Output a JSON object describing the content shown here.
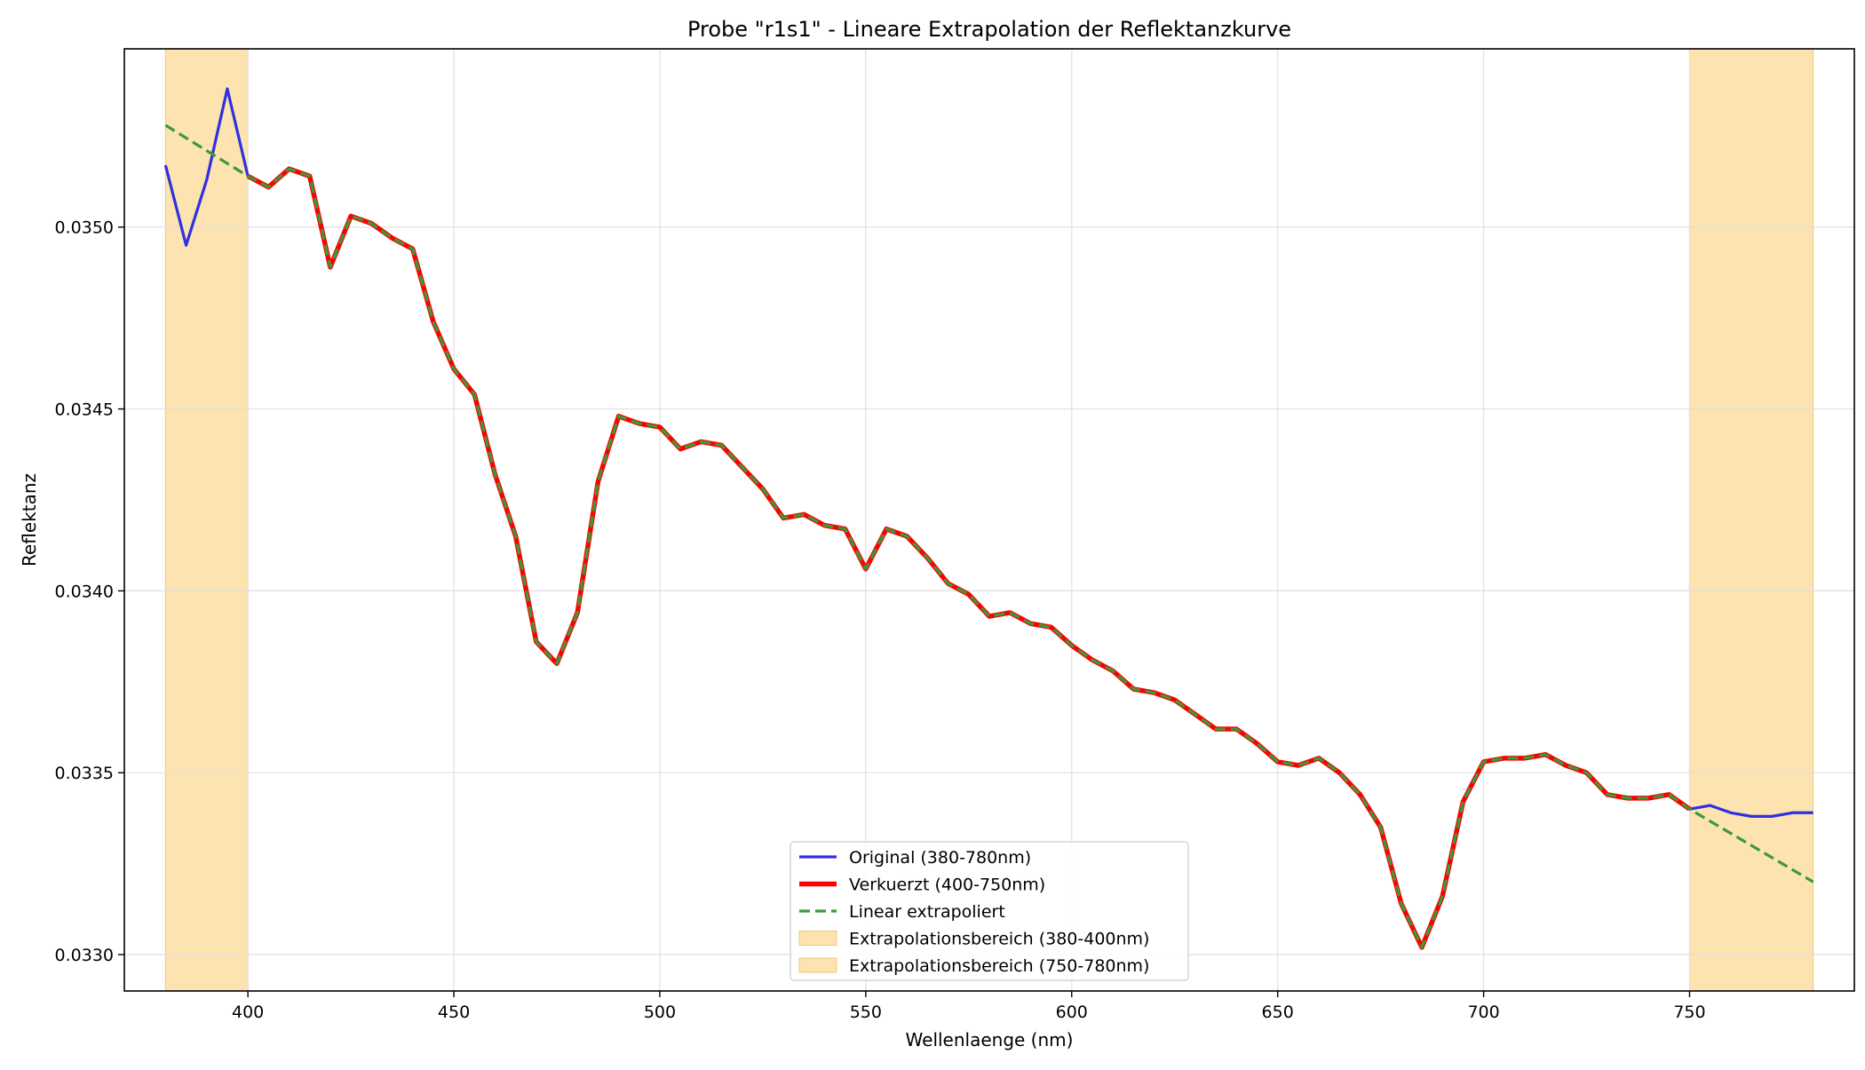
{
  "chart_data": {
    "type": "line",
    "title": "Probe \"r1s1\" - Lineare Extrapolation der Reflektanzkurve",
    "xlabel": "Wellenlaenge (nm)",
    "ylabel": "Reflektanz",
    "xlim": [
      370,
      790
    ],
    "ylim": [
      0.0329,
      0.03549
    ],
    "xticks": [
      400,
      450,
      500,
      550,
      600,
      650,
      700,
      750
    ],
    "xtick_labels": [
      "400",
      "450",
      "500",
      "550",
      "600",
      "650",
      "700",
      "750"
    ],
    "yticks": [
      0.033,
      0.0335,
      0.034,
      0.0345,
      0.035
    ],
    "ytick_labels": [
      "0.0330",
      "0.0335",
      "0.0340",
      "0.0345",
      "0.0350"
    ],
    "grid": true,
    "legend_position": "lower-center",
    "x": [
      380,
      385,
      390,
      395,
      400,
      405,
      410,
      415,
      420,
      425,
      430,
      435,
      440,
      445,
      450,
      455,
      460,
      465,
      470,
      475,
      480,
      485,
      490,
      495,
      500,
      505,
      510,
      515,
      520,
      525,
      530,
      535,
      540,
      545,
      550,
      555,
      560,
      565,
      570,
      575,
      580,
      585,
      590,
      595,
      600,
      605,
      610,
      615,
      620,
      625,
      630,
      635,
      640,
      645,
      650,
      655,
      660,
      665,
      670,
      675,
      680,
      685,
      690,
      695,
      700,
      705,
      710,
      715,
      720,
      725,
      730,
      735,
      740,
      745,
      750,
      755,
      760,
      765,
      770,
      775,
      780
    ],
    "shaded_regions": [
      {
        "name": "Extrapolationsbereich (380-400nm)",
        "x_range": [
          380,
          400
        ],
        "color": "#fde3b0"
      },
      {
        "name": "Extrapolationsbereich (750-780nm)",
        "x_range": [
          750,
          780
        ],
        "color": "#fde3b0"
      }
    ],
    "series": [
      {
        "name": "Original (380-780nm)",
        "color": "#3030e0",
        "style": "solid",
        "x_range": [
          380,
          780
        ],
        "values": [
          0.03517,
          0.03495,
          0.03513,
          0.03538,
          0.03514,
          0.03511,
          0.03516,
          0.03514,
          0.03489,
          0.03503,
          0.03501,
          0.03497,
          0.03494,
          0.03474,
          0.03461,
          0.03454,
          0.03432,
          0.03415,
          0.03386,
          0.0338,
          0.03394,
          0.0343,
          0.03448,
          0.03446,
          0.03445,
          0.03439,
          0.03441,
          0.0344,
          0.03434,
          0.03428,
          0.0342,
          0.03421,
          0.03418,
          0.03417,
          0.03406,
          0.03417,
          0.03415,
          0.03409,
          0.03402,
          0.03399,
          0.03393,
          0.03394,
          0.03391,
          0.0339,
          0.03385,
          0.03381,
          0.03378,
          0.03373,
          0.03372,
          0.0337,
          0.03366,
          0.03362,
          0.03362,
          0.03358,
          0.03353,
          0.03352,
          0.03354,
          0.0335,
          0.03344,
          0.03335,
          0.03314,
          0.03302,
          0.03316,
          0.03342,
          0.03353,
          0.03354,
          0.03354,
          0.03355,
          0.03352,
          0.0335,
          0.03344,
          0.03343,
          0.03343,
          0.03344,
          0.0334,
          0.03341,
          0.03339,
          0.03338,
          0.03338,
          0.03339,
          0.03339
        ]
      },
      {
        "name": "Verkuerzt (400-750nm)",
        "color": "#ff0000",
        "style": "solid",
        "x_range": [
          400,
          750
        ]
      },
      {
        "name": "Linear extrapoliert",
        "color": "#3a9a3a",
        "style": "dashed",
        "x_range": [
          380,
          780
        ],
        "left_extrapolation": {
          "x": [
            380,
            400
          ],
          "values": [
            0.03528,
            0.03514
          ]
        },
        "right_extrapolation": {
          "x": [
            750,
            780
          ],
          "values": [
            0.0334,
            0.0332
          ]
        }
      }
    ]
  }
}
